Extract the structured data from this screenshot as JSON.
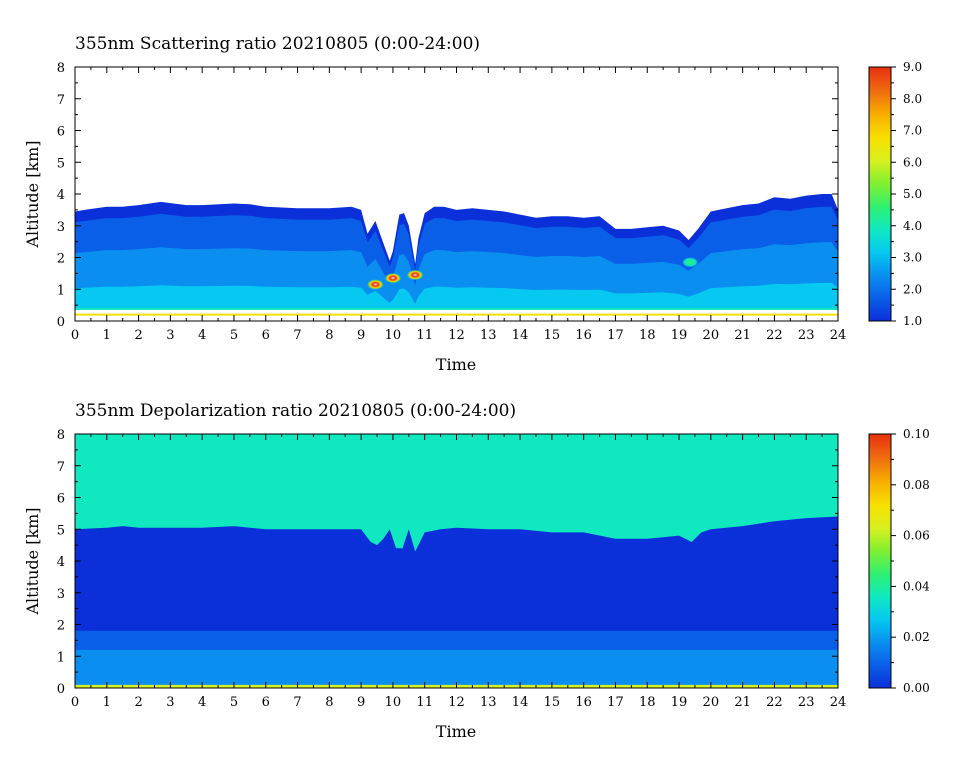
{
  "charts": [
    {
      "chart_data": {
        "type": "heatmap",
        "title": "355nm Scattering ratio  20210805 (0:00-24:00)",
        "xlabel": "Time",
        "ylabel": "Altitude [km]",
        "xlim": [
          0,
          24
        ],
        "ylim": [
          0,
          8
        ],
        "x_ticks": [
          "0",
          "1",
          "2",
          "3",
          "4",
          "5",
          "6",
          "7",
          "8",
          "9",
          "10",
          "11",
          "12",
          "13",
          "14",
          "15",
          "16",
          "17",
          "18",
          "19",
          "20",
          "21",
          "22",
          "23",
          "24"
        ],
        "y_ticks": [
          "0",
          "1",
          "2",
          "3",
          "4",
          "5",
          "6",
          "7",
          "8"
        ],
        "colorbar": {
          "min": 1.0,
          "max": 9.0,
          "ticks": [
            "1.0",
            "2.0",
            "3.0",
            "4.0",
            "5.0",
            "6.0",
            "7.0",
            "8.0",
            "9.0"
          ],
          "colors": [
            "#0b2fd8",
            "#0a5fe8",
            "#0a8ff0",
            "#06c8f0",
            "#10e8c0",
            "#30f070",
            "#80f030",
            "#d8f020",
            "#f8e000",
            "#f8b000",
            "#f07010",
            "#e83010"
          ]
        },
        "layer_top_km": {
          "time_h": [
            0,
            0.3,
            1,
            1.5,
            2,
            2.7,
            3.5,
            4,
            5,
            5.5,
            6,
            7,
            8,
            8.7,
            9,
            9.2,
            9.45,
            9.7,
            9.9,
            10,
            10.2,
            10.35,
            10.5,
            10.7,
            10.8,
            11,
            11.3,
            11.6,
            12,
            12.5,
            13,
            13.5,
            14,
            14.5,
            15,
            15.5,
            16,
            16.5,
            17,
            17.5,
            18,
            18.5,
            19,
            19.3,
            19.6,
            20,
            20.5,
            21,
            21.5,
            22,
            22.5,
            23,
            23.5,
            23.8,
            24
          ],
          "top_km": [
            3.45,
            3.5,
            3.6,
            3.6,
            3.65,
            3.75,
            3.65,
            3.65,
            3.7,
            3.68,
            3.6,
            3.55,
            3.55,
            3.6,
            3.5,
            2.75,
            3.15,
            2.45,
            1.9,
            2.2,
            3.35,
            3.4,
            3.0,
            1.8,
            2.6,
            3.4,
            3.6,
            3.6,
            3.5,
            3.55,
            3.5,
            3.45,
            3.35,
            3.25,
            3.3,
            3.3,
            3.25,
            3.3,
            2.9,
            2.9,
            2.95,
            3.0,
            2.85,
            2.55,
            2.9,
            3.45,
            3.55,
            3.65,
            3.7,
            3.9,
            3.85,
            3.95,
            4.0,
            4.0,
            3.5
          ]
        },
        "hotspots": [
          {
            "time_h": 9.45,
            "alt_km": 1.15,
            "value": 7.5
          },
          {
            "time_h": 10.0,
            "alt_km": 1.35,
            "value": 8.0
          },
          {
            "time_h": 10.7,
            "alt_km": 1.45,
            "value": 8.5
          },
          {
            "time_h": 19.35,
            "alt_km": 1.85,
            "value": 4.5
          }
        ],
        "surface_lines": [
          {
            "alt_km": 0.38,
            "value": 4.0
          },
          {
            "alt_km": 0.2,
            "value": 6.5
          }
        ]
      }
    },
    {
      "chart_data": {
        "type": "heatmap",
        "title": "355nm Depolarization ratio  20210805 (0:00-24:00)",
        "xlabel": "Time",
        "ylabel": "Altitude [km]",
        "xlim": [
          0,
          24
        ],
        "ylim": [
          0,
          8
        ],
        "x_ticks": [
          "0",
          "1",
          "2",
          "3",
          "4",
          "5",
          "6",
          "7",
          "8",
          "9",
          "10",
          "11",
          "12",
          "13",
          "14",
          "15",
          "16",
          "17",
          "18",
          "19",
          "20",
          "21",
          "22",
          "23",
          "24"
        ],
        "y_ticks": [
          "0",
          "1",
          "2",
          "3",
          "4",
          "5",
          "6",
          "7",
          "8"
        ],
        "colorbar": {
          "min": 0.0,
          "max": 0.1,
          "ticks": [
            "0.00",
            "0.02",
            "0.04",
            "0.06",
            "0.08",
            "0.10"
          ],
          "colors": [
            "#0b2fd8",
            "#0a5fe8",
            "#0a8ff0",
            "#06c8f0",
            "#10e8c0",
            "#30f070",
            "#80f030",
            "#d8f020",
            "#f8e000",
            "#f8b000",
            "#f07010",
            "#e83010"
          ]
        },
        "background_value": 0.04,
        "layer_top_km": {
          "time_h": [
            0,
            1,
            1.5,
            2,
            3,
            4,
            5,
            5.5,
            6,
            7,
            8,
            9,
            9.3,
            9.5,
            9.7,
            9.9,
            10.1,
            10.3,
            10.5,
            10.7,
            11,
            11.5,
            12,
            13,
            14,
            15,
            16,
            17,
            18,
            18.5,
            19,
            19.4,
            19.7,
            20,
            21,
            22,
            23,
            24
          ],
          "top_km": [
            5.0,
            5.05,
            5.1,
            5.05,
            5.05,
            5.05,
            5.1,
            5.05,
            5.0,
            5.0,
            5.0,
            5.0,
            4.6,
            4.5,
            4.7,
            5.0,
            4.4,
            4.4,
            5.0,
            4.3,
            4.9,
            5.0,
            5.05,
            5.0,
            5.0,
            4.9,
            4.9,
            4.7,
            4.7,
            4.75,
            4.8,
            4.6,
            4.9,
            5.0,
            5.1,
            5.25,
            5.35,
            5.4
          ]
        },
        "low_layer_top_km": 1.8,
        "surface_lines": [
          {
            "alt_km": 0.05,
            "value": 0.06
          }
        ]
      }
    }
  ]
}
